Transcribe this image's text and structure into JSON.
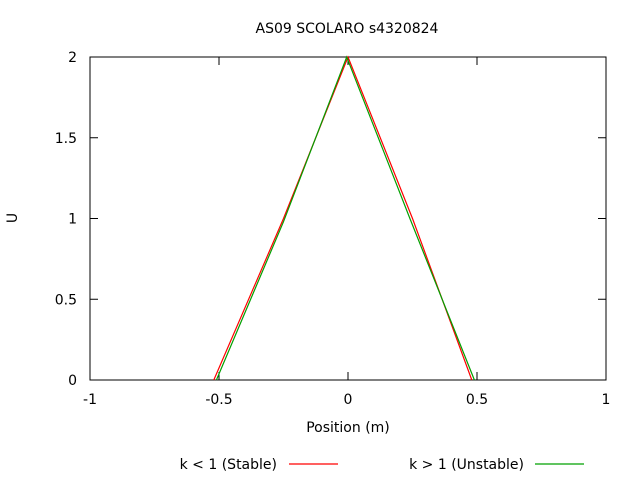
{
  "chart_data": {
    "type": "line",
    "title": "AS09 SCOLARO s4320824",
    "xlabel": "Position (m)",
    "ylabel": "U",
    "xlim": [
      -1,
      1
    ],
    "ylim": [
      0,
      2
    ],
    "xticks": [
      "-1",
      "-0.5",
      "0",
      "0.5",
      "1"
    ],
    "yticks": [
      "0",
      "0.5",
      "1",
      "1.5",
      "2"
    ],
    "grid": false,
    "legend_position": "bottom",
    "series": [
      {
        "name": "k < 1 (Stable)",
        "color": "#ff0000",
        "x": [
          -0.52,
          -0.25,
          0.0,
          0.25,
          0.48
        ],
        "y": [
          0,
          1.0,
          2.0,
          1.0,
          0
        ]
      },
      {
        "name": "k > 1 (Unstable)",
        "color": "#00a000",
        "x": [
          -0.51,
          -0.25,
          -0.005,
          0.24,
          0.49
        ],
        "y": [
          0,
          0.98,
          2.0,
          1.0,
          0
        ]
      }
    ]
  }
}
